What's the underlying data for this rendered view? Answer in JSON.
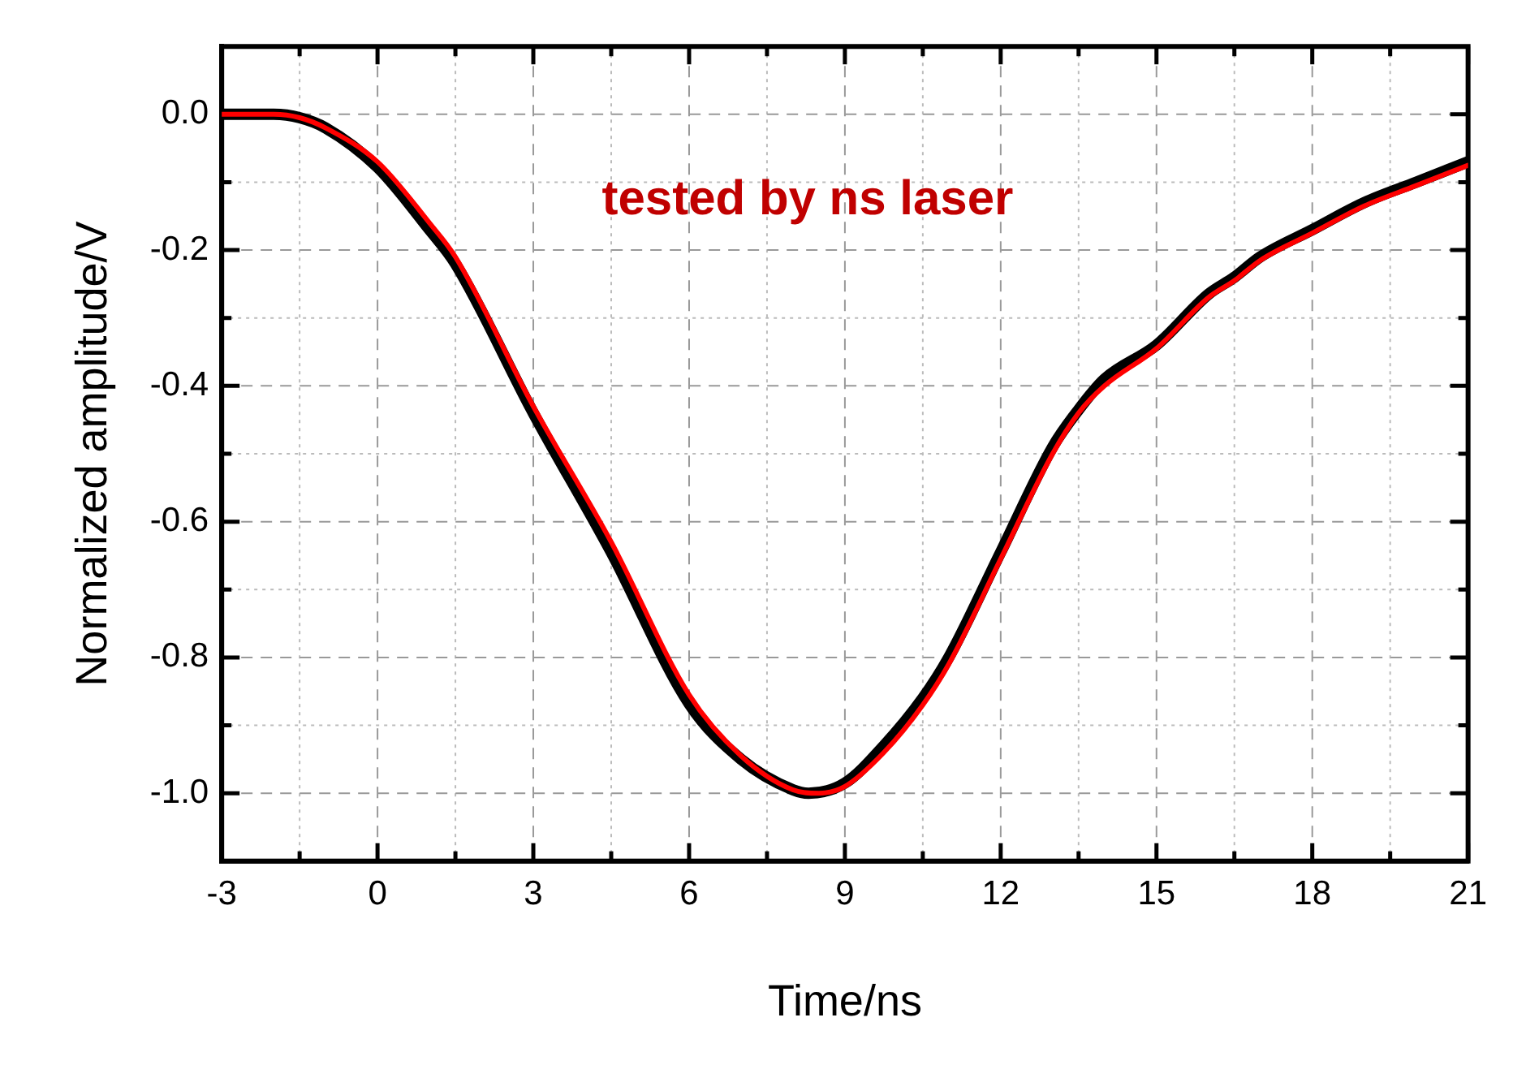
{
  "chart_data": {
    "type": "line",
    "xlabel": "Time/ns",
    "ylabel": "Normalized amplitude/V",
    "annotations": [
      "tested by ns laser"
    ],
    "xlim": [
      -3,
      21
    ],
    "ylim": [
      -1.1,
      0.1
    ],
    "xticks": [
      -3,
      {
        "value": -1.5,
        "label": null
      },
      0,
      {
        "value": 1.5,
        "label": null
      },
      3,
      {
        "value": 4.5,
        "label": null
      },
      6,
      {
        "value": 7.5,
        "label": null
      },
      9,
      {
        "value": 10.5,
        "label": null
      },
      12,
      {
        "value": 13.5,
        "label": null
      },
      15,
      {
        "value": 16.5,
        "label": null
      },
      18,
      {
        "value": 19.5,
        "label": null
      },
      21
    ],
    "yticks": [
      {
        "value": 0,
        "label": "0.0"
      },
      {
        "value": -0.1,
        "label": null
      },
      -0.2,
      {
        "value": -0.3,
        "label": null
      },
      -0.4,
      {
        "value": -0.5,
        "label": null
      },
      -0.6,
      {
        "value": -0.7,
        "label": null
      },
      -0.8,
      {
        "value": -0.9,
        "label": null
      },
      {
        "value": -1,
        "label": "-1.0"
      }
    ],
    "grid": true,
    "legend": false,
    "marker": "none",
    "line_style": "solid",
    "series": [
      {
        "color": "#ff0000",
        "x": [
          -3,
          -2,
          -1.5,
          -1,
          0,
          1,
          1.5,
          3,
          4.5,
          6,
          7,
          8,
          8.5,
          9,
          9.75,
          10.5,
          11,
          12,
          13,
          13.5,
          14,
          15,
          16,
          16.5,
          17,
          18,
          19,
          20,
          21
        ],
        "values": [
          0,
          0,
          -0.005,
          -0.02,
          -0.07,
          -0.16,
          -0.21,
          -0.43,
          -0.63,
          -0.855,
          -0.945,
          -0.995,
          -1.0,
          -0.99,
          -0.94,
          -0.87,
          -0.81,
          -0.655,
          -0.5,
          -0.44,
          -0.4,
          -0.345,
          -0.27,
          -0.245,
          -0.215,
          -0.175,
          -0.135,
          -0.105,
          -0.075
        ]
      },
      {
        "color": "#000000",
        "x": [
          -3,
          -2,
          -1.5,
          -1,
          0,
          1,
          1.5,
          3,
          4.5,
          6,
          7,
          8,
          8.3,
          9,
          9.75,
          10.5,
          11,
          12,
          13,
          13.5,
          14,
          15,
          16,
          16.5,
          17,
          18,
          19,
          20,
          21
        ],
        "values": [
          0,
          0,
          -0.005,
          -0.02,
          -0.078,
          -0.17,
          -0.22,
          -0.44,
          -0.645,
          -0.868,
          -0.95,
          -0.995,
          -1.0,
          -0.985,
          -0.93,
          -0.86,
          -0.8,
          -0.645,
          -0.49,
          -0.435,
          -0.39,
          -0.34,
          -0.265,
          -0.24,
          -0.21,
          -0.17,
          -0.13,
          -0.1,
          -0.07
        ]
      }
    ]
  }
}
